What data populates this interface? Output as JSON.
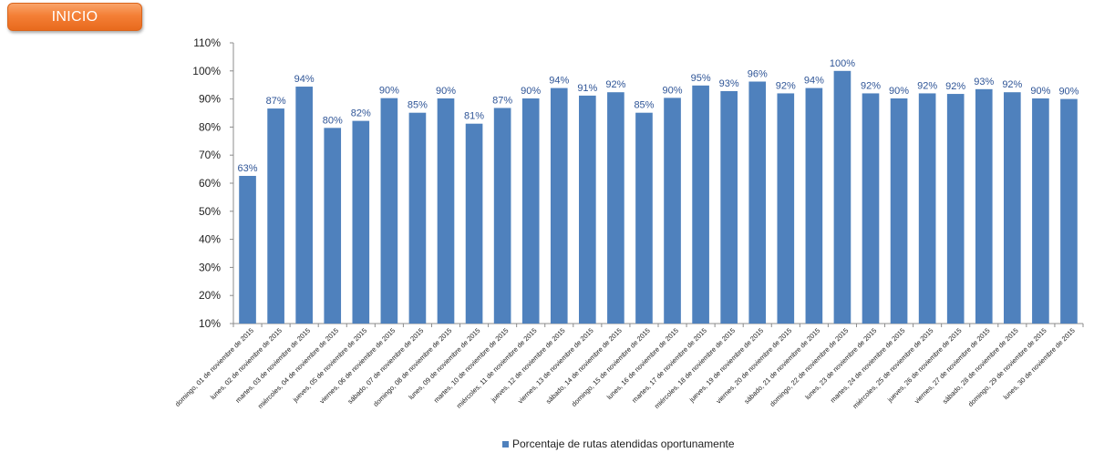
{
  "nav": {
    "inicio_label": "INICIO"
  },
  "colors": {
    "bar": "#4f81bd",
    "label": "#2f5597",
    "button": "#f47f36"
  },
  "chart_data": {
    "type": "bar",
    "title": "",
    "xlabel": "",
    "ylabel": "",
    "ylim": [
      10,
      110
    ],
    "yticks": [
      10,
      20,
      30,
      40,
      50,
      60,
      70,
      80,
      90,
      100,
      110
    ],
    "y_format": "percent",
    "grid": false,
    "legend_position": "bottom",
    "categories": [
      "domingo, 01 de noviembre de 2015",
      "lunes, 02 de noviembre de 2015",
      "martes, 03 de noviembre de 2015",
      "miércoles, 04 de noviembre de 2015",
      "jueves, 05 de noviembre de 2015",
      "viernes, 06 de noviembre de 2015",
      "sábado, 07 de noviembre de 2015",
      "domingo, 08 de noviembre de 2015",
      "lunes, 09 de noviembre de 2015",
      "martes, 10 de noviembre de 2015",
      "miércoles, 11 de noviembre de 2015",
      "jueves, 12 de noviembre de 2015",
      "viernes, 13 de noviembre de 2015",
      "sábado, 14 de noviembre de 2015",
      "domingo, 15 de noviembre de 2015",
      "lunes, 16 de noviembre de 2015",
      "martes, 17 de noviembre de 2015",
      "miércoles, 18 de noviembre de 2015",
      "jueves, 19 de noviembre de 2015",
      "viernes, 20 de noviembre de 2015",
      "sábado, 21 de noviembre de 2015",
      "domingo, 22 de noviembre de 2015",
      "lunes, 23 de noviembre de 2015",
      "martes, 24 de noviembre de 2015",
      "miércoles, 25 de noviembre de 2015",
      "jueves, 26 de noviembre de 2015",
      "viernes, 27 de noviembre de 2015",
      "sábado, 28 de noviembre de 2015",
      "domingo, 29 de noviembre de 2015",
      "lunes, 30 de noviembre de 2015"
    ],
    "series": [
      {
        "name": "Porcentaje de rutas atendidas oportunamente",
        "values": [
          62.6,
          86.6,
          94.4,
          79.7,
          82.2,
          90.3,
          85.1,
          90.2,
          81.2,
          86.8,
          90.2,
          93.9,
          91.2,
          92.4,
          85.1,
          90.4,
          94.8,
          92.8,
          96.2,
          92.0,
          93.9,
          100.0,
          92.0,
          90.2,
          92.0,
          91.8,
          93.5,
          92.4,
          90.2,
          90.0
        ],
        "labels": [
          "63%",
          "87%",
          "94%",
          "80%",
          "82%",
          "90%",
          "85%",
          "90%",
          "81%",
          "87%",
          "90%",
          "94%",
          "91%",
          "92%",
          "85%",
          "90%",
          "95%",
          "93%",
          "96%",
          "92%",
          "94%",
          "100%",
          "92%",
          "90%",
          "92%",
          "92%",
          "93%",
          "92%",
          "90%",
          "90%"
        ]
      }
    ]
  }
}
